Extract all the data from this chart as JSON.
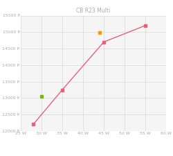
{
  "title": "CB R23 Multi",
  "xlim": [
    25,
    60
  ],
  "ylim": [
    12000,
    15500
  ],
  "xticks": [
    25,
    30,
    35,
    40,
    45,
    50,
    55,
    60
  ],
  "yticks": [
    12000,
    12500,
    13000,
    13500,
    14000,
    14500,
    15000,
    15500
  ],
  "series_ayaneo": {
    "x": [
      28,
      35,
      45,
      55
    ],
    "y": [
      12200,
      13250,
      14700,
      15200
    ],
    "color": "#e8607a",
    "marker": "s",
    "markersize": 2.5,
    "linewidth": 1.0
  },
  "series_lenovo": {
    "x": [
      30
    ],
    "y": [
      13050
    ],
    "color": "#77bb00",
    "marker": "s",
    "markersize": 3.5
  },
  "series_asus": {
    "x": [
      44
    ],
    "y": [
      14980
    ],
    "color": "#ff9900",
    "marker": "s",
    "markersize": 3.5
  },
  "grid_color": "#d8d8d8",
  "background_color": "#ffffff",
  "plot_bg": "#f5f5f5",
  "title_fontsize": 5.5,
  "tick_fontsize": 4.5,
  "legend_fontsize": 4.0,
  "tick_color": "#aaaaaa",
  "title_color": "#aaaaaa"
}
